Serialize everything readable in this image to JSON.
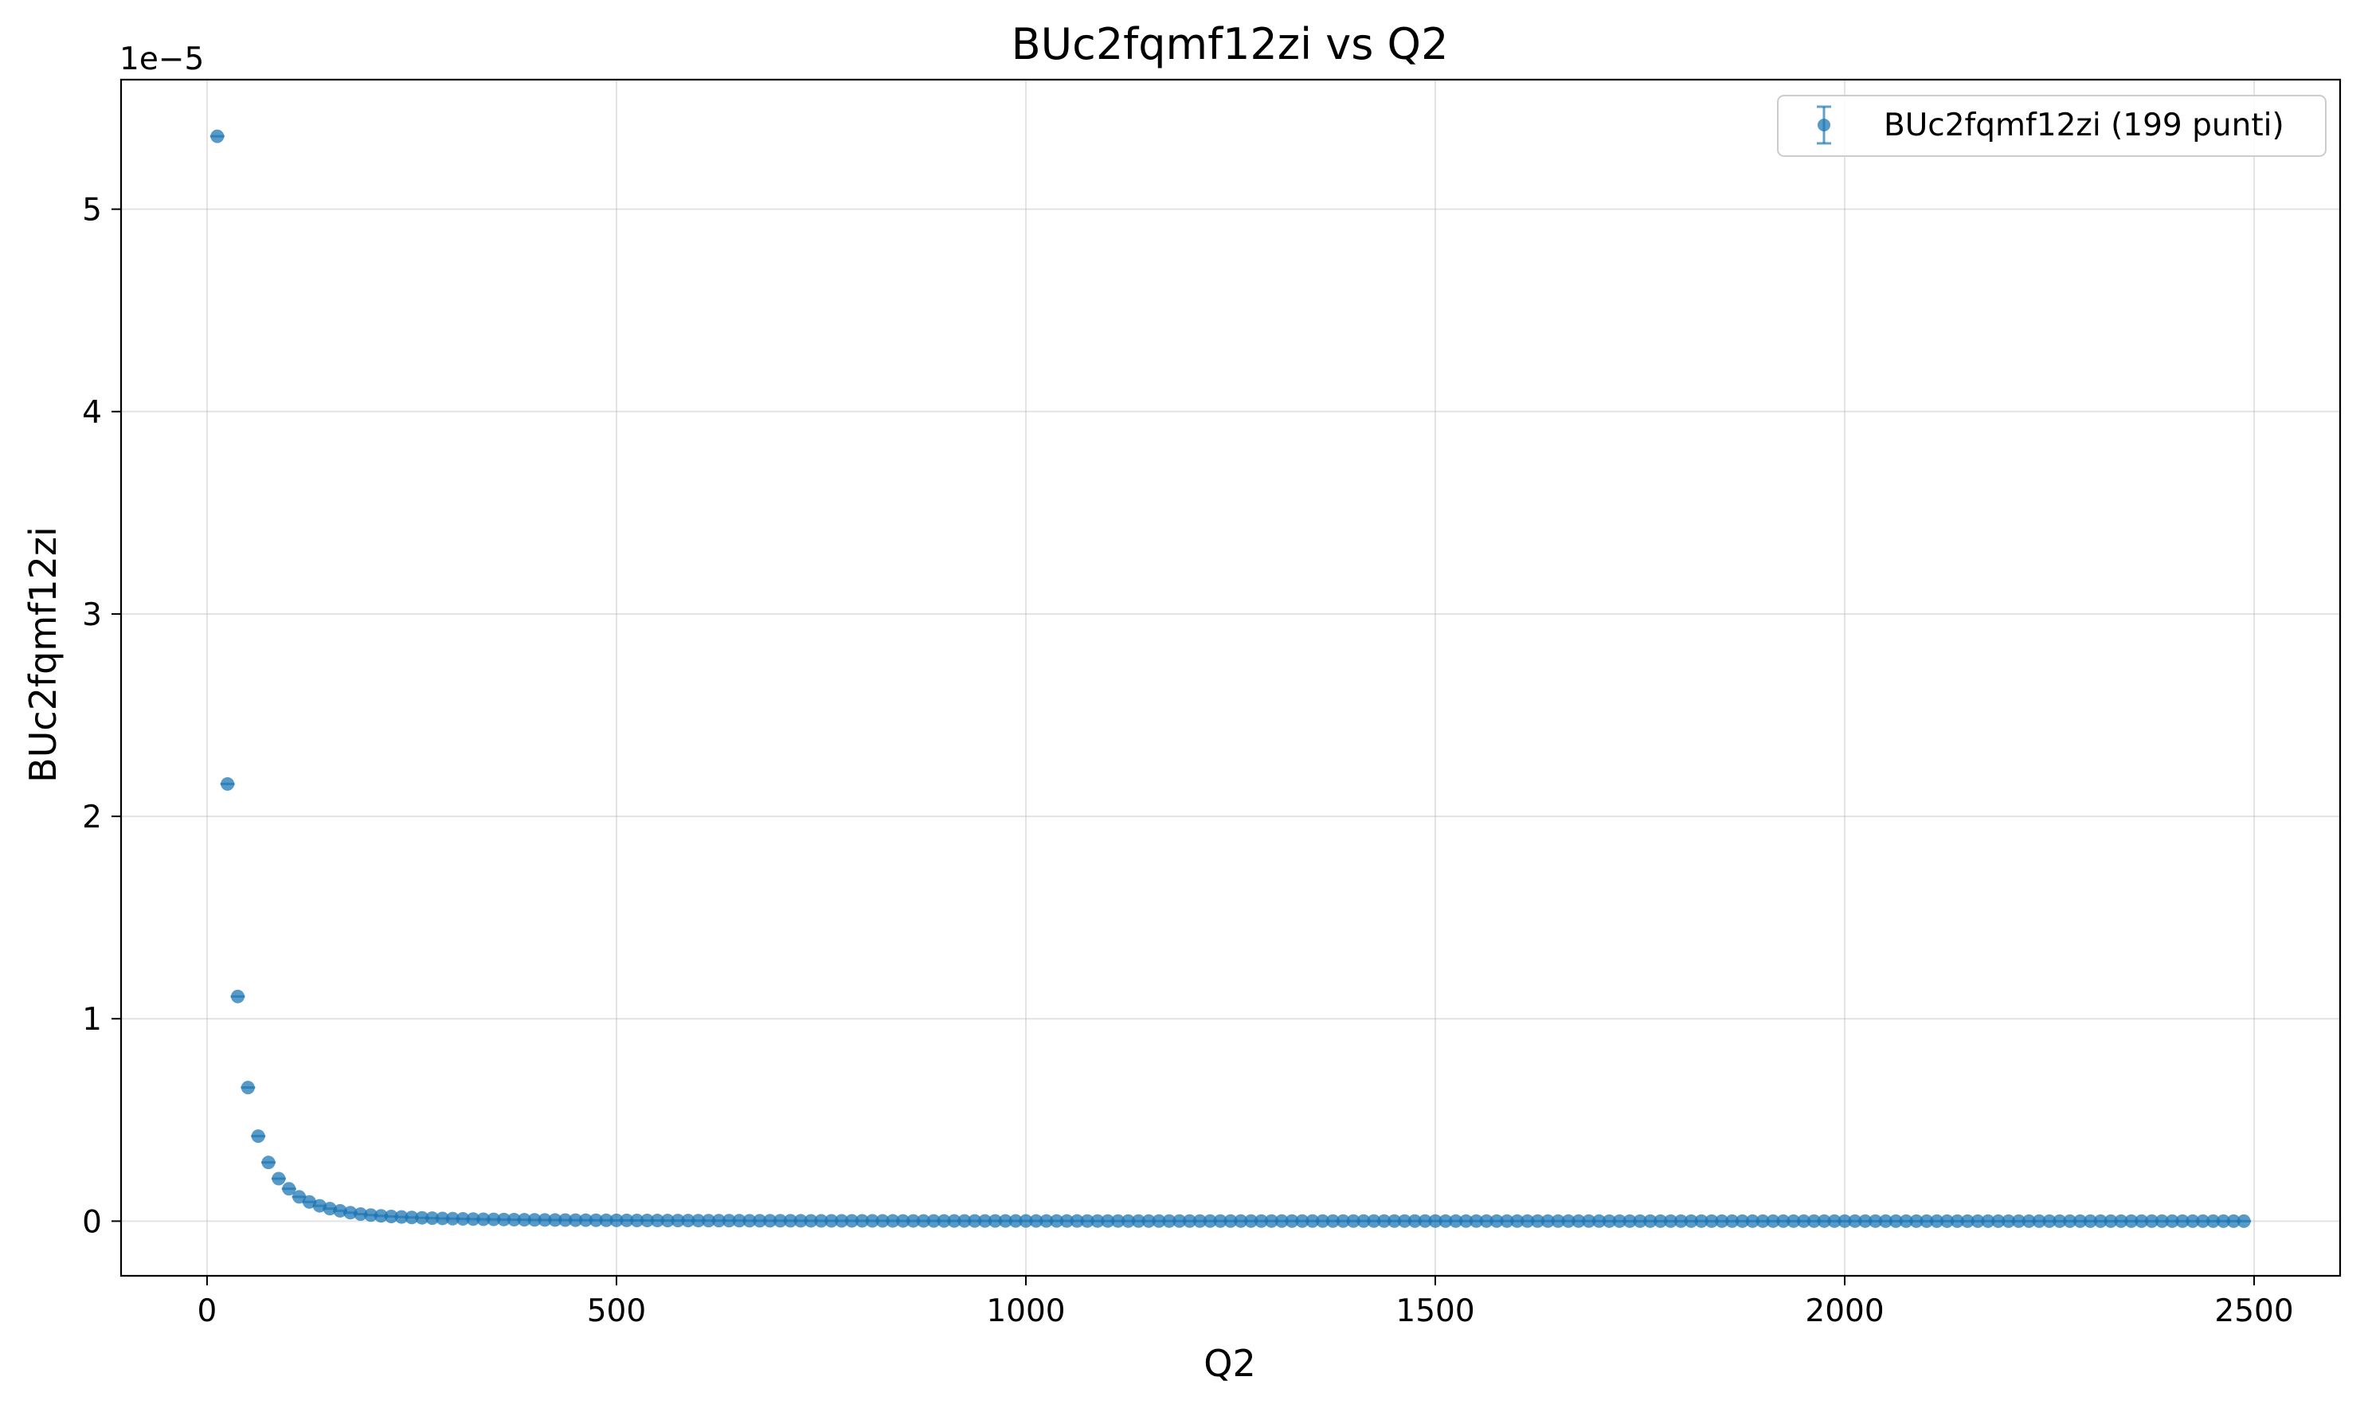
{
  "chart_data": {
    "type": "scatter",
    "title": "BUc2fqmf12zi vs Q2",
    "xlabel": "Q2",
    "ylabel": "BUc2fqmf12zi",
    "y_offset_label": "1e−5",
    "xlim": [
      -105,
      2605
    ],
    "ylim": [
      -2.7e-06,
      5.64e-05
    ],
    "xticks": [
      0,
      500,
      1000,
      1500,
      2000,
      2500
    ],
    "xtick_labels": [
      "0",
      "500",
      "1000",
      "1500",
      "2000",
      "2500"
    ],
    "yticks": [
      0,
      1e-05,
      2e-05,
      3e-05,
      4e-05,
      5e-05
    ],
    "ytick_labels": [
      "0",
      "1",
      "2",
      "3",
      "4",
      "5"
    ],
    "grid": true,
    "legend": {
      "position": "top-right",
      "entries": [
        "BUc2fqmf12zi (199 punti)"
      ]
    },
    "colors": {
      "series": "#1f77b4"
    },
    "series": [
      {
        "name": "BUc2fqmf12zi (199 punti)",
        "marker": "circle-with-errorbar",
        "x_start": 12.5,
        "x_step": 12.5,
        "count": 199,
        "x": [
          12.5,
          25,
          37.5,
          50,
          62.5,
          75,
          87.5,
          100,
          112.5,
          125,
          137.5,
          150,
          162.5,
          175,
          187.5,
          200
        ],
        "y": [
          5.36e-05,
          2.16e-05,
          1.11e-05,
          6.6e-06,
          4.2e-06,
          2.9e-06,
          2.1e-06,
          1.6e-06,
          1.2e-06,
          9.5e-07,
          7.6e-07,
          6.2e-07,
          5.1e-07,
          4.2e-07,
          3.5e-07,
          3e-07
        ],
        "y_tail_note": "values approach 0 for Q2 > 200 (about 0 up to 2487.5)"
      }
    ]
  }
}
